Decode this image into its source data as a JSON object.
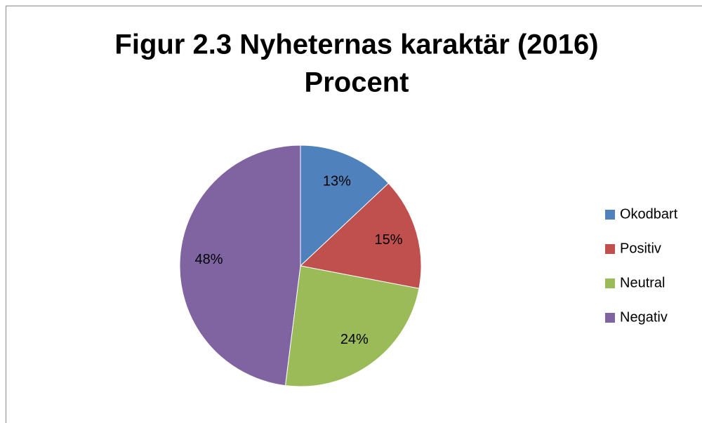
{
  "chart_data": {
    "type": "pie",
    "title": "Figur 2.3 Nyheternas karaktär (2016)",
    "subtitle": "Procent",
    "categories": [
      "Okodbart",
      "Positiv",
      "Neutral",
      "Negativ"
    ],
    "values": [
      13,
      15,
      24,
      48
    ],
    "value_labels": [
      "13%",
      "15%",
      "24%",
      "48%"
    ],
    "colors": [
      "#4f81bd",
      "#c0504d",
      "#9bbb59",
      "#8064a2"
    ],
    "legend": "right"
  }
}
